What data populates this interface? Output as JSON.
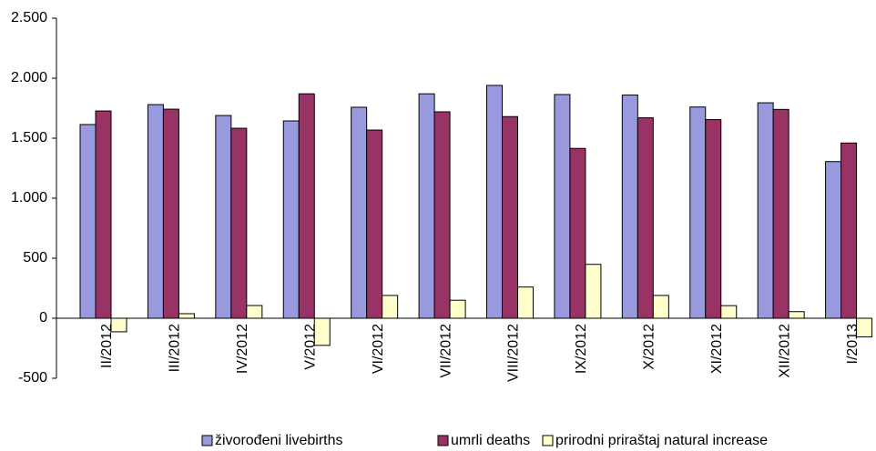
{
  "chart_data": {
    "type": "bar",
    "categories": [
      "II/2012",
      "III/2012",
      "IV/2012",
      "V/2012",
      "VI/2012",
      "VII/2012",
      "VIII/2012",
      "IX/2012",
      "X/2012",
      "XI/2012",
      "XII/2012",
      "I/2013"
    ],
    "series": [
      {
        "name": "živorođeni livebirths",
        "color": "#9999dd",
        "values": [
          1614,
          1780,
          1689,
          1644,
          1758,
          1870,
          1940,
          1864,
          1860,
          1760,
          1795,
          1305
        ]
      },
      {
        "name": "umrli deaths",
        "color": "#993366",
        "values": [
          1727,
          1742,
          1583,
          1870,
          1568,
          1720,
          1680,
          1415,
          1670,
          1655,
          1740,
          1460
        ]
      },
      {
        "name": "prirodni priraštaj natural increase",
        "color": "#ffffcc",
        "values": [
          -113,
          38,
          106,
          -226,
          190,
          150,
          260,
          449,
          190,
          105,
          55,
          -155
        ]
      }
    ],
    "ylim": [
      -500,
      2500
    ],
    "yticks": [
      -500,
      0,
      500,
      {
        "value": 1000,
        "label": "1.000"
      },
      {
        "value": 1500,
        "label": "1.500"
      },
      {
        "value": 2000,
        "label": "2.000"
      },
      {
        "value": 2500,
        "label": "2.500"
      }
    ],
    "grid": false
  }
}
